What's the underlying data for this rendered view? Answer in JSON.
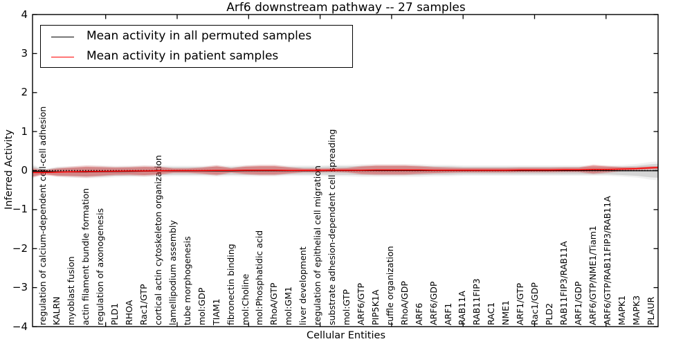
{
  "title": "Arf6 downstream pathway -- 27 samples",
  "axes": {
    "ylabel": "Inferred Activity",
    "xlabel": "Cellular Entities",
    "yticks": [
      "4",
      "3",
      "2",
      "1",
      "0",
      "−1",
      "−2",
      "−3",
      "−4"
    ]
  },
  "legend": {
    "items": [
      {
        "label": "Mean activity in all permuted samples",
        "color": "#000000"
      },
      {
        "label": "Mean activity in patient samples",
        "color": "#ff0000"
      }
    ]
  },
  "colors": {
    "permuted_line": "#000000",
    "patient_line": "#ff0000",
    "permuted_band": "#bdbdbd",
    "patient_band": "#d62728",
    "zero_line": "#000000"
  },
  "chart_data": {
    "type": "line",
    "title": "Arf6 downstream pathway -- 27 samples",
    "xlabel": "Cellular Entities",
    "ylabel": "Inferred Activity",
    "ylim": [
      -4,
      4
    ],
    "grid": false,
    "legend_position": "upper left",
    "categories": [
      "regulation of calcium-dependent cell-cell adhesion",
      "KALRN",
      "myoblast fusion",
      "actin filament bundle formation",
      "regulation of axonogenesis",
      "PLD1",
      "RHOA",
      "Rac1/GTP",
      "cortical actin cytoskeleton organization",
      "lamellipodium assembly",
      "tube morphogenesis",
      "mol:GDP",
      "TIAM1",
      "fibronectin binding",
      "mol:Choline",
      "mol:Phosphatidic acid",
      "RhoA/GTP",
      "mol:GM1",
      "liver development",
      "regulation of epithelial cell migration",
      "substrate adhesion-dependent cell spreading",
      "mol:GTP",
      "ARF6/GTP",
      "PIP5K1A",
      "ruffle organization",
      "RhoA/GDP",
      "ARF6",
      "ARF6/GDP",
      "ARF1",
      "RAB11A",
      "RAB11FIP3",
      "RAC1",
      "NME1",
      "ARF1/GTP",
      "Rac1/GDP",
      "PLD2",
      "RAB11FIP3/RAB11A",
      "ARF1/GDP",
      "ARF6/GTP/NME1/Tiam1",
      "ARF6/GTP/RAB11FIP3/RAB11A",
      "MAPK1",
      "MAPK3",
      "PLAUR"
    ],
    "series": [
      {
        "name": "Mean activity in all permuted samples",
        "values": [
          -0.02,
          -0.03,
          -0.035,
          -0.035,
          -0.03,
          -0.025,
          -0.02,
          -0.015,
          -0.01,
          -0.01,
          -0.01,
          -0.01,
          -0.01,
          -0.01,
          -0.005,
          -0.005,
          -0.005,
          -0.005,
          -0.005,
          -0.005,
          0,
          0,
          0,
          0,
          0,
          0,
          0,
          0,
          0,
          0,
          0,
          0,
          0,
          0,
          0,
          0,
          0,
          0,
          0,
          0,
          -0.005,
          -0.005,
          -0.005
        ]
      },
      {
        "name": "Mean activity in patient samples",
        "values": [
          -0.05,
          -0.04,
          -0.03,
          -0.025,
          -0.02,
          -0.015,
          -0.01,
          -0.01,
          -0.005,
          0,
          0,
          0,
          0.005,
          0.005,
          0.01,
          0.01,
          0.01,
          0.005,
          0.005,
          0.005,
          0.01,
          0.01,
          0.01,
          0.015,
          0.015,
          0.015,
          0.015,
          0.01,
          0.01,
          0.01,
          0.01,
          0.01,
          0.01,
          0.015,
          0.015,
          0.015,
          0.02,
          0.02,
          0.03,
          0.03,
          0.04,
          0.05,
          0.07
        ]
      }
    ],
    "bands": {
      "permuted_halfwidth": [
        0.04,
        0.1,
        0.11,
        0.12,
        0.12,
        0.11,
        0.11,
        0.11,
        0.11,
        0.1,
        0.1,
        0.1,
        0.11,
        0.1,
        0.11,
        0.11,
        0.11,
        0.1,
        0.1,
        0.1,
        0.11,
        0.11,
        0.12,
        0.12,
        0.12,
        0.12,
        0.12,
        0.11,
        0.11,
        0.1,
        0.1,
        0.1,
        0.1,
        0.1,
        0.1,
        0.1,
        0.1,
        0.1,
        0.1,
        0.1,
        0.11,
        0.13,
        0.17
      ],
      "patient_halfwidth": [
        0.053,
        0.089,
        0.106,
        0.124,
        0.106,
        0.089,
        0.089,
        0.106,
        0.089,
        0.053,
        0.053,
        0.071,
        0.106,
        0.053,
        0.089,
        0.106,
        0.106,
        0.071,
        0.044,
        0.044,
        0.044,
        0.053,
        0.089,
        0.106,
        0.106,
        0.106,
        0.089,
        0.071,
        0.062,
        0.053,
        0.053,
        0.053,
        0.053,
        0.053,
        0.053,
        0.053,
        0.053,
        0.053,
        0.098,
        0.071,
        0.044,
        0.035,
        0.035
      ]
    }
  }
}
